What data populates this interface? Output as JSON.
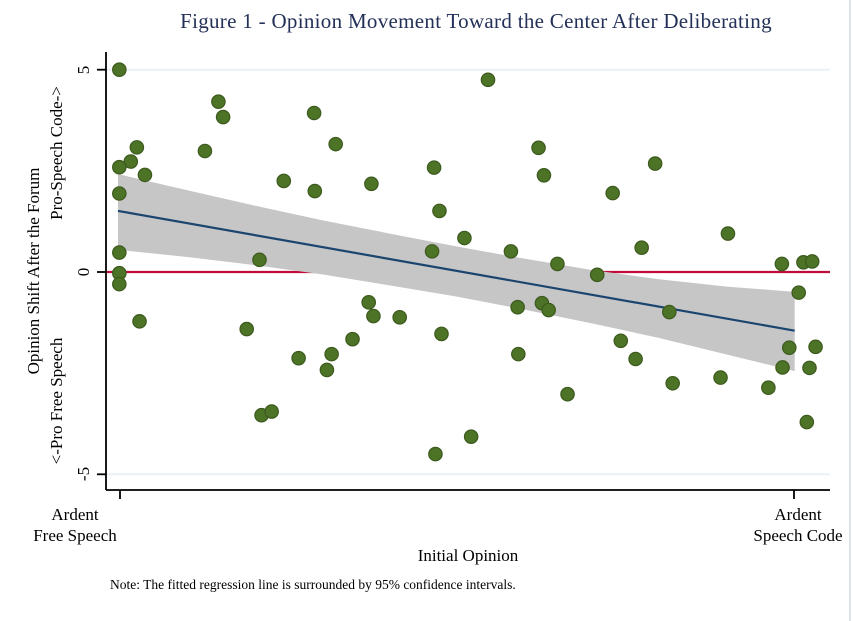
{
  "figure": {
    "title": "Figure 1 - Opinion Movement Toward the Center After Deliberating",
    "note": "Note: The fitted regression line is surrounded by 95% confidence intervals."
  },
  "y_axis": {
    "title": "Opinion Shift After the Forum",
    "upper_label": "Pro-Speech Code->",
    "lower_label": "<-Pro Free Speech",
    "tick_labels": [
      "5",
      "0",
      "-5"
    ]
  },
  "x_axis": {
    "title": "Initial Opinion",
    "left_tick_line1": "Ardent",
    "left_tick_line2": "Free Speech",
    "right_tick_line1": "Ardent",
    "right_tick_line2": "Speech Code"
  },
  "colors": {
    "title": "#233058",
    "point_fill": "#4d7326",
    "point_edge": "#3c5a1e",
    "regression": "#1b456f",
    "zero_line": "#be0d3c",
    "band": "#c6c6c6",
    "gridline": "#eaf0f5",
    "axis": "#000000"
  },
  "chart_data": {
    "type": "scatter",
    "title": "Figure 1 - Opinion Movement Toward the Center After Deliberating",
    "xlabel": "Initial Opinion",
    "ylabel": "Opinion Shift After the Forum",
    "xlim": [
      -5.2,
      5.53
    ],
    "ylim": [
      -5.4,
      5.45
    ],
    "x_ticks": [
      {
        "value": -5,
        "label": "Ardent Free Speech"
      },
      {
        "value": 5,
        "label": "Ardent Speech Code"
      }
    ],
    "y_ticks": [
      5,
      0,
      -5
    ],
    "grid_y": [
      5,
      -5
    ],
    "zero_line": {
      "y": 0
    },
    "regression_line": {
      "x1": -5.03,
      "y1": 1.51,
      "x2": 5.01,
      "y2": -1.45
    },
    "confidence_band": {
      "level": "95%",
      "x": [
        -5.03,
        -4.0,
        -3.0,
        -2.0,
        -1.0,
        0.0,
        1.0,
        2.0,
        3.0,
        4.0,
        5.01
      ],
      "upper": [
        2.42,
        2.02,
        1.64,
        1.28,
        0.95,
        0.63,
        0.33,
        0.05,
        -0.18,
        -0.36,
        -0.49
      ],
      "lower": [
        0.55,
        0.37,
        0.17,
        -0.06,
        -0.33,
        -0.61,
        -0.93,
        -1.27,
        -1.63,
        -2.04,
        -2.45
      ]
    },
    "point_style": {
      "radius": 6.7
    },
    "points": [
      [
        -5.01,
        5.0
      ],
      [
        -4.75,
        3.08
      ],
      [
        -4.84,
        2.73
      ],
      [
        -5.01,
        2.59
      ],
      [
        -4.63,
        2.4
      ],
      [
        -5.01,
        1.94
      ],
      [
        -5.01,
        0.48
      ],
      [
        -5.01,
        -0.03
      ],
      [
        -5.01,
        -0.3
      ],
      [
        -4.71,
        -1.22
      ],
      [
        -3.74,
        2.99
      ],
      [
        -3.54,
        4.21
      ],
      [
        -3.47,
        3.83
      ],
      [
        -3.12,
        -1.41
      ],
      [
        -2.93,
        0.3
      ],
      [
        -2.9,
        -3.54
      ],
      [
        -2.75,
        -3.45
      ],
      [
        -2.57,
        2.25
      ],
      [
        -2.35,
        -2.13
      ],
      [
        -2.12,
        3.93
      ],
      [
        -2.11,
        2.0
      ],
      [
        -1.93,
        -2.42
      ],
      [
        -1.86,
        -2.03
      ],
      [
        -1.8,
        3.16
      ],
      [
        -1.55,
        -1.66
      ],
      [
        -1.31,
        -0.75
      ],
      [
        -1.27,
        2.18
      ],
      [
        -1.24,
        -1.09
      ],
      [
        -0.85,
        -1.12
      ],
      [
        -0.37,
        0.51
      ],
      [
        -0.34,
        2.58
      ],
      [
        -0.32,
        -4.5
      ],
      [
        -0.26,
        1.51
      ],
      [
        -0.23,
        -1.53
      ],
      [
        0.11,
        0.84
      ],
      [
        0.21,
        -4.07
      ],
      [
        0.46,
        4.75
      ],
      [
        0.8,
        0.51
      ],
      [
        0.9,
        -0.87
      ],
      [
        0.91,
        -2.03
      ],
      [
        1.21,
        3.07
      ],
      [
        1.26,
        -0.77
      ],
      [
        1.29,
        2.39
      ],
      [
        1.36,
        -0.94
      ],
      [
        1.49,
        0.2
      ],
      [
        1.64,
        -3.02
      ],
      [
        2.08,
        -0.07
      ],
      [
        2.31,
        1.95
      ],
      [
        2.43,
        -1.7
      ],
      [
        2.65,
        -2.15
      ],
      [
        2.74,
        0.6
      ],
      [
        2.94,
        2.68
      ],
      [
        3.15,
        -0.99
      ],
      [
        3.2,
        -2.75
      ],
      [
        3.91,
        -2.61
      ],
      [
        4.02,
        0.95
      ],
      [
        4.62,
        -2.86
      ],
      [
        4.82,
        0.2
      ],
      [
        4.83,
        -2.36
      ],
      [
        4.93,
        -1.87
      ],
      [
        5.07,
        -0.51
      ],
      [
        5.14,
        0.24
      ],
      [
        5.19,
        -3.71
      ],
      [
        5.23,
        -2.37
      ],
      [
        5.27,
        0.26
      ],
      [
        5.32,
        -1.85
      ]
    ],
    "legend": null,
    "grid_on": true
  }
}
